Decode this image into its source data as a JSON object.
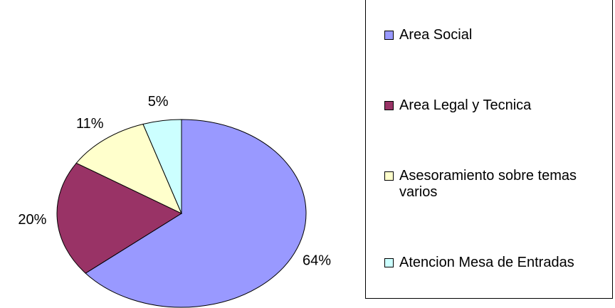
{
  "chart_data": {
    "type": "pie",
    "categories": [
      "Area Social",
      "Area Legal y Tecnica",
      "Asesoramiento sobre temas varios",
      "Atencion Mesa de Entradas"
    ],
    "values": [
      64,
      20,
      11,
      5
    ],
    "value_labels": [
      "64%",
      "20%",
      "11%",
      "5%"
    ],
    "colors": [
      "#9999ff",
      "#993366",
      "#ffffcc",
      "#ccffff"
    ],
    "legend": "right"
  }
}
